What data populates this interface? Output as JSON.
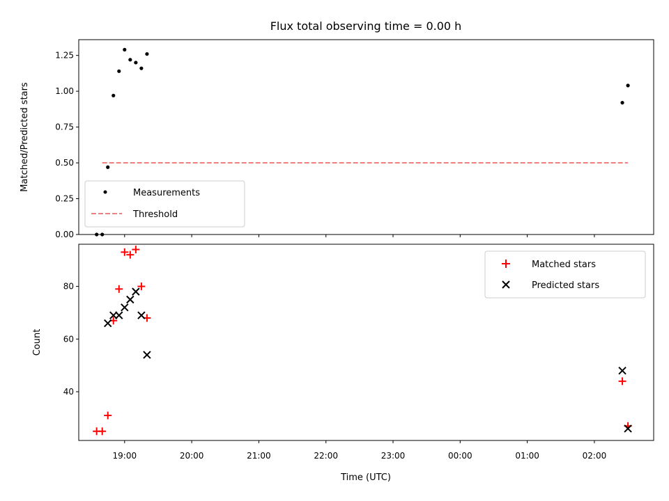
{
  "title": "Flux total observing time = 0.00 h",
  "chart_data": [
    {
      "type": "scatter",
      "panel": "top",
      "ylabel": "Matched/Predicted stars",
      "xlabel": "",
      "xlim": [
        "18:19",
        "02:53"
      ],
      "ylim": [
        0,
        1.36
      ],
      "yticks": [
        0.0,
        0.25,
        0.5,
        0.75,
        1.0,
        1.25
      ],
      "ytick_labels": [
        "0.00",
        "0.25",
        "0.50",
        "0.75",
        "1.00",
        "1.25"
      ],
      "xticks": [
        "19:00",
        "20:00",
        "21:00",
        "22:00",
        "23:00",
        "00:00",
        "01:00",
        "02:00"
      ],
      "legend_position": "lower-left",
      "series": [
        {
          "name": "Measurements",
          "marker": "dot",
          "color": "#000000",
          "points": [
            {
              "x": "18:35",
              "y": 0.0
            },
            {
              "x": "18:40",
              "y": 0.0
            },
            {
              "x": "18:45",
              "y": 0.47
            },
            {
              "x": "18:50",
              "y": 0.97
            },
            {
              "x": "18:55",
              "y": 1.14
            },
            {
              "x": "19:00",
              "y": 1.29
            },
            {
              "x": "19:05",
              "y": 1.22
            },
            {
              "x": "19:10",
              "y": 1.2
            },
            {
              "x": "19:15",
              "y": 1.16
            },
            {
              "x": "19:20",
              "y": 1.26
            },
            {
              "x": "02:25",
              "y": 0.92
            },
            {
              "x": "02:30",
              "y": 1.04
            }
          ]
        },
        {
          "name": "Threshold",
          "marker": "dashed-line",
          "color": "#f08080",
          "points": [
            {
              "x": "18:40",
              "y": 0.5
            },
            {
              "x": "02:30",
              "y": 0.5
            }
          ]
        }
      ]
    },
    {
      "type": "scatter",
      "panel": "bottom",
      "ylabel": "Count",
      "xlabel": "Time (UTC)",
      "xlim": [
        "18:19",
        "02:53"
      ],
      "ylim": [
        21.5,
        96
      ],
      "yticks": [
        40,
        60,
        80
      ],
      "ytick_labels": [
        "40",
        "60",
        "80"
      ],
      "xticks": [
        "19:00",
        "20:00",
        "21:00",
        "22:00",
        "23:00",
        "00:00",
        "01:00",
        "02:00"
      ],
      "legend_position": "upper-right",
      "series": [
        {
          "name": "Matched stars",
          "marker": "plus",
          "color": "#ff0000",
          "points": [
            {
              "x": "18:35",
              "y": 25
            },
            {
              "x": "18:40",
              "y": 25
            },
            {
              "x": "18:45",
              "y": 31
            },
            {
              "x": "18:50",
              "y": 67
            },
            {
              "x": "18:55",
              "y": 79
            },
            {
              "x": "19:00",
              "y": 93
            },
            {
              "x": "19:05",
              "y": 92
            },
            {
              "x": "19:10",
              "y": 94
            },
            {
              "x": "19:15",
              "y": 80
            },
            {
              "x": "19:20",
              "y": 68
            },
            {
              "x": "02:25",
              "y": 44
            },
            {
              "x": "02:30",
              "y": 27
            }
          ]
        },
        {
          "name": "Predicted stars",
          "marker": "x",
          "color": "#000000",
          "points": [
            {
              "x": "18:45",
              "y": 66
            },
            {
              "x": "18:50",
              "y": 69
            },
            {
              "x": "18:55",
              "y": 69
            },
            {
              "x": "19:00",
              "y": 72
            },
            {
              "x": "19:05",
              "y": 75
            },
            {
              "x": "19:10",
              "y": 78
            },
            {
              "x": "19:15",
              "y": 69
            },
            {
              "x": "19:20",
              "y": 54
            },
            {
              "x": "02:25",
              "y": 48
            },
            {
              "x": "02:30",
              "y": 26
            }
          ]
        }
      ]
    }
  ]
}
